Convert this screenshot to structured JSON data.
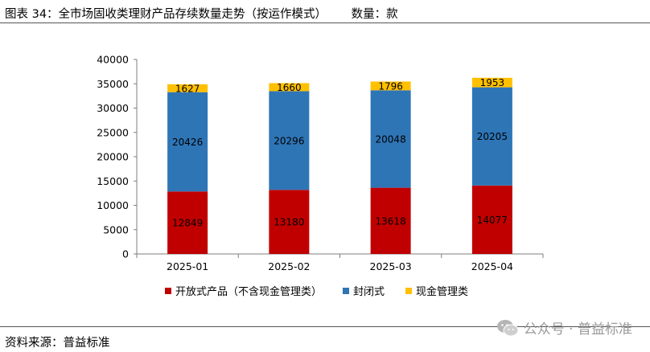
{
  "figure": {
    "title": "图表 34：全市场固收类理财产品存续数量走势（按运作模式）",
    "units": "数量：款",
    "source": "资料来源：普益标准",
    "watermark": "公众号 · 普益标准"
  },
  "chart_data": {
    "type": "bar",
    "stacked": true,
    "categories": [
      "2025-01",
      "2025-02",
      "2025-03",
      "2025-04"
    ],
    "ylim": [
      0,
      40000
    ],
    "yticks": [
      0,
      5000,
      10000,
      15000,
      20000,
      25000,
      30000,
      35000,
      40000
    ],
    "series": [
      {
        "name": "开放式产品（不含现金管理类）",
        "color": "#C00000",
        "values": [
          12849,
          13180,
          13618,
          14077
        ]
      },
      {
        "name": "封闭式",
        "color": "#2E75B6",
        "values": [
          20426,
          20296,
          20048,
          20205
        ]
      },
      {
        "name": "现金管理类",
        "color": "#FFC000",
        "values": [
          1627,
          1660,
          1796,
          1953
        ]
      }
    ],
    "legend_position": "bottom",
    "grid": false
  }
}
